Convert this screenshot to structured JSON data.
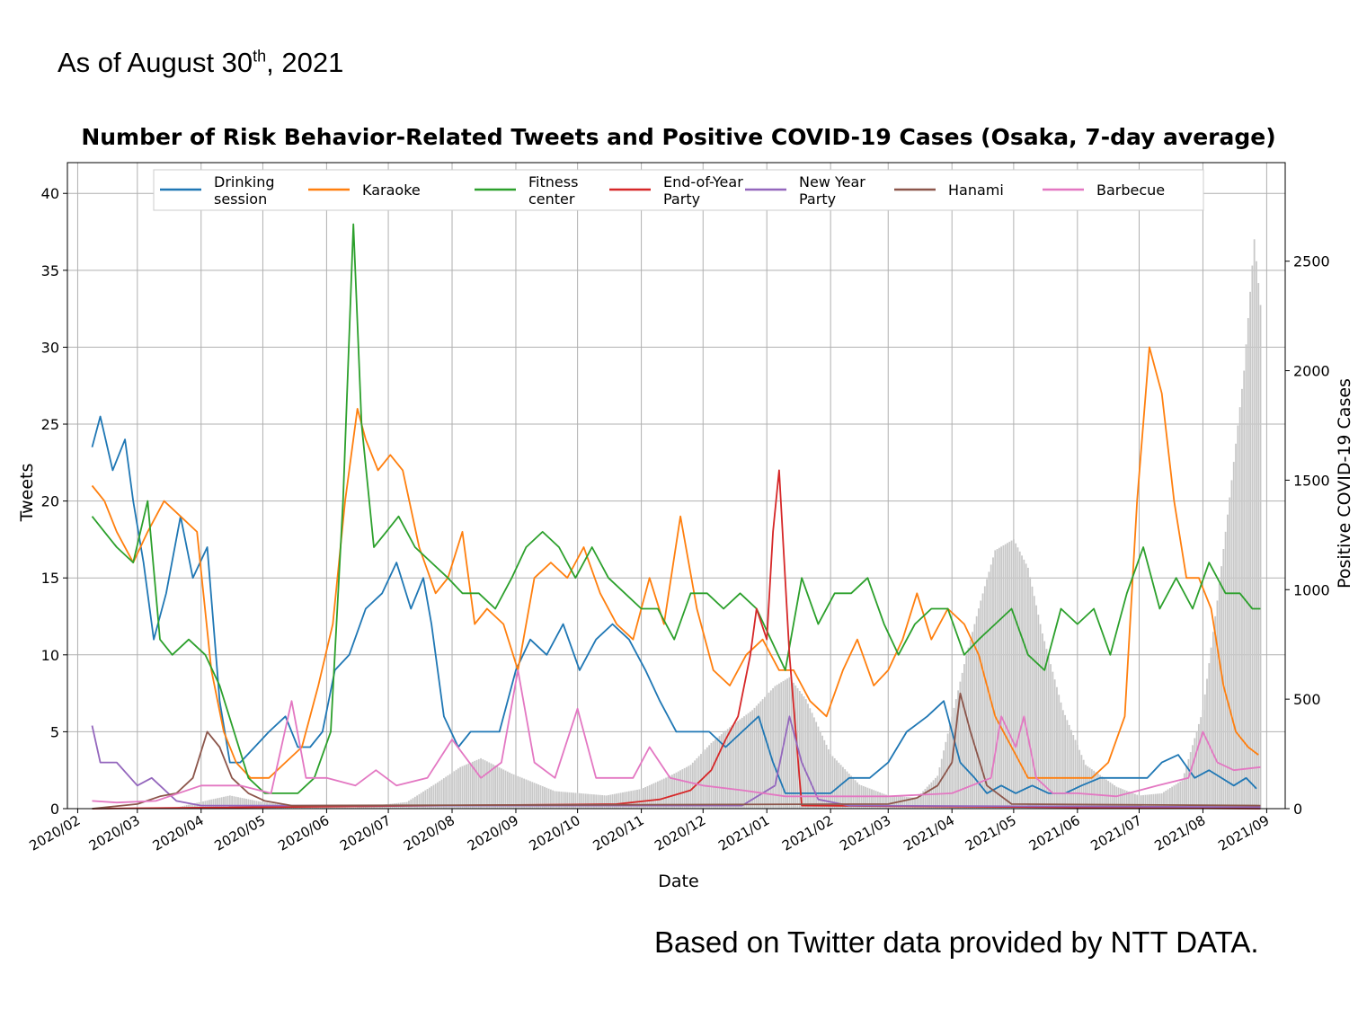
{
  "header": {
    "as_of_prefix": "As of August 30",
    "as_of_suffix": "th",
    "as_of_year": ", 2021"
  },
  "footer": {
    "source_text": "Based on Twitter data provided by NTT DATA."
  },
  "chart_data": {
    "type": "line",
    "title": "Number of Risk Behavior-Related Tweets and Positive COVID-19 Cases (Osaka, 7-day average)",
    "xlabel": "Date",
    "ylabel": "Tweets",
    "y2label": "Positive COVID-19 Cases",
    "ylim": [
      0,
      42
    ],
    "y2lim": [
      0,
      2950
    ],
    "yticks": [
      0,
      5,
      10,
      15,
      20,
      25,
      30,
      35,
      40
    ],
    "y2ticks": [
      0,
      500,
      1000,
      1500,
      2000,
      2500
    ],
    "xlim": [
      "2020-01-27",
      "2021-09-10"
    ],
    "xticks": [
      "2020/02",
      "2020/03",
      "2020/04",
      "2020/05",
      "2020/06",
      "2020/07",
      "2020/08",
      "2020/09",
      "2020/10",
      "2020/11",
      "2020/12",
      "2021/01",
      "2021/02",
      "2021/03",
      "2021/04",
      "2021/05",
      "2021/06",
      "2021/07",
      "2021/08",
      "2021/09"
    ],
    "grid": true,
    "legend_position": "top",
    "series": [
      {
        "name": "Drinking\nsession",
        "color": "#1f77b4",
        "axis": "left",
        "x": [
          "2020-02-08",
          "2020-02-12",
          "2020-02-18",
          "2020-02-24",
          "2020-02-28",
          "2020-03-04",
          "2020-03-09",
          "2020-03-15",
          "2020-03-22",
          "2020-03-28",
          "2020-04-04",
          "2020-04-10",
          "2020-04-15",
          "2020-04-20",
          "2020-04-27",
          "2020-05-04",
          "2020-05-12",
          "2020-05-18",
          "2020-05-24",
          "2020-05-30",
          "2020-06-05",
          "2020-06-12",
          "2020-06-20",
          "2020-06-28",
          "2020-07-05",
          "2020-07-12",
          "2020-07-18",
          "2020-07-22",
          "2020-07-28",
          "2020-08-04",
          "2020-08-10",
          "2020-08-16",
          "2020-08-24",
          "2020-09-01",
          "2020-09-08",
          "2020-09-16",
          "2020-09-24",
          "2020-10-02",
          "2020-10-10",
          "2020-10-18",
          "2020-10-26",
          "2020-11-03",
          "2020-11-10",
          "2020-11-18",
          "2020-11-26",
          "2020-12-04",
          "2020-12-12",
          "2020-12-20",
          "2020-12-28",
          "2021-01-04",
          "2021-01-10",
          "2021-01-18",
          "2021-01-25",
          "2021-02-01",
          "2021-02-10",
          "2021-02-20",
          "2021-03-01",
          "2021-03-10",
          "2021-03-20",
          "2021-03-28",
          "2021-04-05",
          "2021-04-12",
          "2021-04-18",
          "2021-04-25",
          "2021-05-02",
          "2021-05-10",
          "2021-05-18",
          "2021-05-26",
          "2021-06-03",
          "2021-06-12",
          "2021-06-20",
          "2021-06-28",
          "2021-07-05",
          "2021-07-12",
          "2021-07-20",
          "2021-07-28",
          "2021-08-04",
          "2021-08-10",
          "2021-08-16",
          "2021-08-22",
          "2021-08-27"
        ],
        "y": [
          23.5,
          25.5,
          22,
          24,
          20,
          16,
          11,
          14,
          19,
          15,
          17,
          7,
          3,
          3,
          4,
          5,
          6,
          4,
          4,
          5,
          9,
          10,
          13,
          14,
          16,
          13,
          15,
          12,
          6,
          4,
          5,
          5,
          5,
          9,
          11,
          10,
          12,
          9,
          11,
          12,
          11,
          9,
          7,
          5,
          5,
          5,
          4,
          5,
          6,
          3,
          1,
          1,
          1,
          1,
          2,
          2,
          3,
          5,
          6,
          7,
          3,
          2,
          1,
          1.5,
          1,
          1.5,
          1,
          1,
          1.5,
          2,
          2,
          2,
          2,
          3,
          3.5,
          2,
          2.5,
          2,
          1.5,
          2,
          1.3
        ]
      },
      {
        "name": "Karaoke",
        "color": "#ff7f0e",
        "axis": "left",
        "x": [
          "2020-02-08",
          "2020-02-14",
          "2020-02-20",
          "2020-02-28",
          "2020-03-06",
          "2020-03-14",
          "2020-03-22",
          "2020-03-30",
          "2020-04-06",
          "2020-04-12",
          "2020-04-18",
          "2020-04-25",
          "2020-05-04",
          "2020-05-12",
          "2020-05-20",
          "2020-05-28",
          "2020-06-04",
          "2020-06-10",
          "2020-06-16",
          "2020-06-20",
          "2020-06-26",
          "2020-07-02",
          "2020-07-08",
          "2020-07-16",
          "2020-07-24",
          "2020-07-30",
          "2020-08-06",
          "2020-08-12",
          "2020-08-18",
          "2020-08-26",
          "2020-09-02",
          "2020-09-10",
          "2020-09-18",
          "2020-09-26",
          "2020-10-04",
          "2020-10-12",
          "2020-10-20",
          "2020-10-28",
          "2020-11-05",
          "2020-11-12",
          "2020-11-20",
          "2020-11-28",
          "2020-12-06",
          "2020-12-14",
          "2020-12-22",
          "2020-12-30",
          "2021-01-07",
          "2021-01-14",
          "2021-01-22",
          "2021-01-30",
          "2021-02-07",
          "2021-02-14",
          "2021-02-22",
          "2021-03-01",
          "2021-03-08",
          "2021-03-15",
          "2021-03-22",
          "2021-03-30",
          "2021-04-07",
          "2021-04-14",
          "2021-04-22",
          "2021-04-30",
          "2021-05-08",
          "2021-05-16",
          "2021-05-24",
          "2021-06-01",
          "2021-06-08",
          "2021-06-16",
          "2021-06-24",
          "2021-06-30",
          "2021-07-06",
          "2021-07-12",
          "2021-07-18",
          "2021-07-24",
          "2021-07-30",
          "2021-08-05",
          "2021-08-11",
          "2021-08-17",
          "2021-08-23",
          "2021-08-28"
        ],
        "y": [
          21,
          20,
          18,
          16,
          18,
          20,
          19,
          18,
          9,
          5,
          3,
          2,
          2,
          3,
          4,
          8,
          12,
          20,
          26,
          24,
          22,
          23,
          22,
          17,
          14,
          15,
          18,
          12,
          13,
          12,
          9,
          15,
          16,
          15,
          17,
          14,
          12,
          11,
          15,
          12,
          19,
          13,
          9,
          8,
          10,
          11,
          9,
          9,
          7,
          6,
          9,
          11,
          8,
          9,
          11,
          14,
          11,
          13,
          12,
          10,
          6,
          4,
          2,
          2,
          2,
          2,
          2,
          3,
          6,
          20,
          30,
          27,
          20,
          15,
          15,
          13,
          8,
          5,
          4,
          3.5
        ]
      },
      {
        "name": "Fitness\ncenter",
        "color": "#2ca02c",
        "axis": "left",
        "x": [
          "2020-02-08",
          "2020-02-14",
          "2020-02-20",
          "2020-02-28",
          "2020-03-06",
          "2020-03-12",
          "2020-03-18",
          "2020-03-26",
          "2020-04-03",
          "2020-04-10",
          "2020-04-17",
          "2020-04-24",
          "2020-05-02",
          "2020-05-10",
          "2020-05-18",
          "2020-05-26",
          "2020-06-03",
          "2020-06-09",
          "2020-06-14",
          "2020-06-18",
          "2020-06-24",
          "2020-06-30",
          "2020-07-06",
          "2020-07-14",
          "2020-07-22",
          "2020-07-30",
          "2020-08-06",
          "2020-08-14",
          "2020-08-22",
          "2020-08-30",
          "2020-09-06",
          "2020-09-14",
          "2020-09-22",
          "2020-09-30",
          "2020-10-08",
          "2020-10-16",
          "2020-10-24",
          "2020-11-01",
          "2020-11-09",
          "2020-11-17",
          "2020-11-25",
          "2020-12-03",
          "2020-12-11",
          "2020-12-19",
          "2020-12-27",
          "2021-01-03",
          "2021-01-10",
          "2021-01-18",
          "2021-01-26",
          "2021-02-03",
          "2021-02-11",
          "2021-02-19",
          "2021-02-27",
          "2021-03-06",
          "2021-03-14",
          "2021-03-22",
          "2021-03-30",
          "2021-04-07",
          "2021-04-14",
          "2021-04-22",
          "2021-04-30",
          "2021-05-08",
          "2021-05-16",
          "2021-05-24",
          "2021-06-01",
          "2021-06-09",
          "2021-06-17",
          "2021-06-25",
          "2021-07-03",
          "2021-07-11",
          "2021-07-19",
          "2021-07-27",
          "2021-08-04",
          "2021-08-12",
          "2021-08-19",
          "2021-08-25",
          "2021-08-29"
        ],
        "y": [
          19,
          18,
          17,
          16,
          20,
          11,
          10,
          11,
          10,
          8,
          5,
          2,
          1,
          1,
          1,
          2,
          5,
          20,
          38,
          25,
          17,
          18,
          19,
          17,
          16,
          15,
          14,
          14,
          13,
          15,
          17,
          18,
          17,
          15,
          17,
          15,
          14,
          13,
          13,
          11,
          14,
          14,
          13,
          14,
          13,
          11,
          9,
          15,
          12,
          14,
          14,
          15,
          12,
          10,
          12,
          13,
          13,
          10,
          11,
          12,
          13,
          10,
          9,
          13,
          12,
          13,
          10,
          14,
          17,
          13,
          15,
          13,
          16,
          14,
          14,
          13,
          13
        ]
      },
      {
        "name": "End-of-Year\nParty",
        "color": "#d62728",
        "axis": "left",
        "x": [
          "2020-02-08",
          "2020-10-20",
          "2020-11-10",
          "2020-11-25",
          "2020-12-05",
          "2020-12-12",
          "2020-12-18",
          "2020-12-24",
          "2020-12-27",
          "2021-01-01",
          "2021-01-04",
          "2021-01-07",
          "2021-01-12",
          "2021-01-18",
          "2021-08-29"
        ],
        "y": [
          0,
          0.3,
          0.6,
          1.2,
          2.5,
          4.5,
          6,
          10,
          13,
          11,
          18,
          22,
          10,
          0.2,
          0
        ]
      },
      {
        "name": "New Year\nParty",
        "color": "#9467bd",
        "axis": "left",
        "x": [
          "2020-02-08",
          "2020-02-12",
          "2020-02-20",
          "2020-03-01",
          "2020-03-08",
          "2020-03-20",
          "2020-04-01",
          "2020-12-20",
          "2021-01-05",
          "2021-01-12",
          "2021-01-18",
          "2021-01-26",
          "2021-02-10",
          "2021-08-29"
        ],
        "y": [
          5.4,
          3,
          3,
          1.5,
          2,
          0.5,
          0.2,
          0.2,
          1.5,
          6,
          3,
          0.6,
          0.2,
          0.1
        ]
      },
      {
        "name": "Hanami",
        "color": "#8c564b",
        "axis": "left",
        "x": [
          "2020-02-08",
          "2020-03-01",
          "2020-03-12",
          "2020-03-20",
          "2020-03-28",
          "2020-04-04",
          "2020-04-10",
          "2020-04-16",
          "2020-04-24",
          "2020-05-02",
          "2020-05-15",
          "2021-03-01",
          "2021-03-15",
          "2021-03-25",
          "2021-04-01",
          "2021-04-05",
          "2021-04-10",
          "2021-04-18",
          "2021-04-30",
          "2021-08-29"
        ],
        "y": [
          0,
          0.3,
          0.8,
          1,
          2,
          5,
          4,
          2,
          1,
          0.5,
          0.2,
          0.3,
          0.7,
          1.5,
          3,
          7.5,
          5,
          1.5,
          0.3,
          0.2
        ]
      },
      {
        "name": "Barbecue",
        "color": "#e377c2",
        "axis": "left",
        "x": [
          "2020-02-08",
          "2020-02-20",
          "2020-03-10",
          "2020-04-01",
          "2020-04-20",
          "2020-05-05",
          "2020-05-15",
          "2020-05-22",
          "2020-06-01",
          "2020-06-15",
          "2020-06-25",
          "2020-07-05",
          "2020-07-20",
          "2020-08-01",
          "2020-08-15",
          "2020-08-25",
          "2020-09-02",
          "2020-09-10",
          "2020-09-20",
          "2020-10-01",
          "2020-10-10",
          "2020-10-20",
          "2020-10-28",
          "2020-11-05",
          "2020-11-15",
          "2020-12-01",
          "2020-12-20",
          "2021-01-10",
          "2021-02-01",
          "2021-03-01",
          "2021-04-01",
          "2021-04-20",
          "2021-04-25",
          "2021-05-02",
          "2021-05-06",
          "2021-05-12",
          "2021-05-20",
          "2021-06-01",
          "2021-06-20",
          "2021-07-10",
          "2021-07-25",
          "2021-08-01",
          "2021-08-08",
          "2021-08-16",
          "2021-08-29"
        ],
        "y": [
          0.5,
          0.4,
          0.5,
          1.5,
          1.5,
          1,
          7,
          2,
          2,
          1.5,
          2.5,
          1.5,
          2,
          4.5,
          2,
          3,
          9,
          3,
          2,
          6.5,
          2,
          2,
          2,
          4,
          2,
          1.5,
          1.2,
          0.8,
          0.8,
          0.8,
          1,
          2,
          6,
          4,
          6,
          2,
          1,
          1,
          0.8,
          1.5,
          2,
          5,
          3,
          2.5,
          2.7
        ]
      }
    ],
    "bars": {
      "name": "Positive COVID-19 Cases",
      "color": "#c8c8c8",
      "axis": "right",
      "x": [
        "2020-02-01",
        "2020-03-20",
        "2020-04-05",
        "2020-04-15",
        "2020-05-01",
        "2020-05-20",
        "2020-06-15",
        "2020-07-10",
        "2020-07-25",
        "2020-08-05",
        "2020-08-15",
        "2020-08-30",
        "2020-09-20",
        "2020-10-15",
        "2020-11-01",
        "2020-11-15",
        "2020-11-25",
        "2020-12-05",
        "2020-12-15",
        "2020-12-25",
        "2021-01-05",
        "2021-01-12",
        "2021-01-20",
        "2021-02-01",
        "2021-02-15",
        "2021-03-01",
        "2021-03-15",
        "2021-03-25",
        "2021-04-01",
        "2021-04-08",
        "2021-04-15",
        "2021-04-22",
        "2021-05-01",
        "2021-05-08",
        "2021-05-15",
        "2021-05-25",
        "2021-06-05",
        "2021-06-20",
        "2021-07-01",
        "2021-07-12",
        "2021-07-22",
        "2021-08-01",
        "2021-08-08",
        "2021-08-15",
        "2021-08-21",
        "2021-08-26",
        "2021-08-29"
      ],
      "y": [
        0,
        5,
        40,
        60,
        30,
        5,
        5,
        30,
        120,
        190,
        230,
        160,
        80,
        60,
        90,
        150,
        200,
        300,
        380,
        450,
        560,
        600,
        500,
        250,
        110,
        60,
        50,
        150,
        420,
        700,
        950,
        1180,
        1230,
        1100,
        800,
        450,
        200,
        100,
        60,
        70,
        130,
        450,
        950,
        1500,
        2000,
        2600,
        2300
      ]
    }
  }
}
